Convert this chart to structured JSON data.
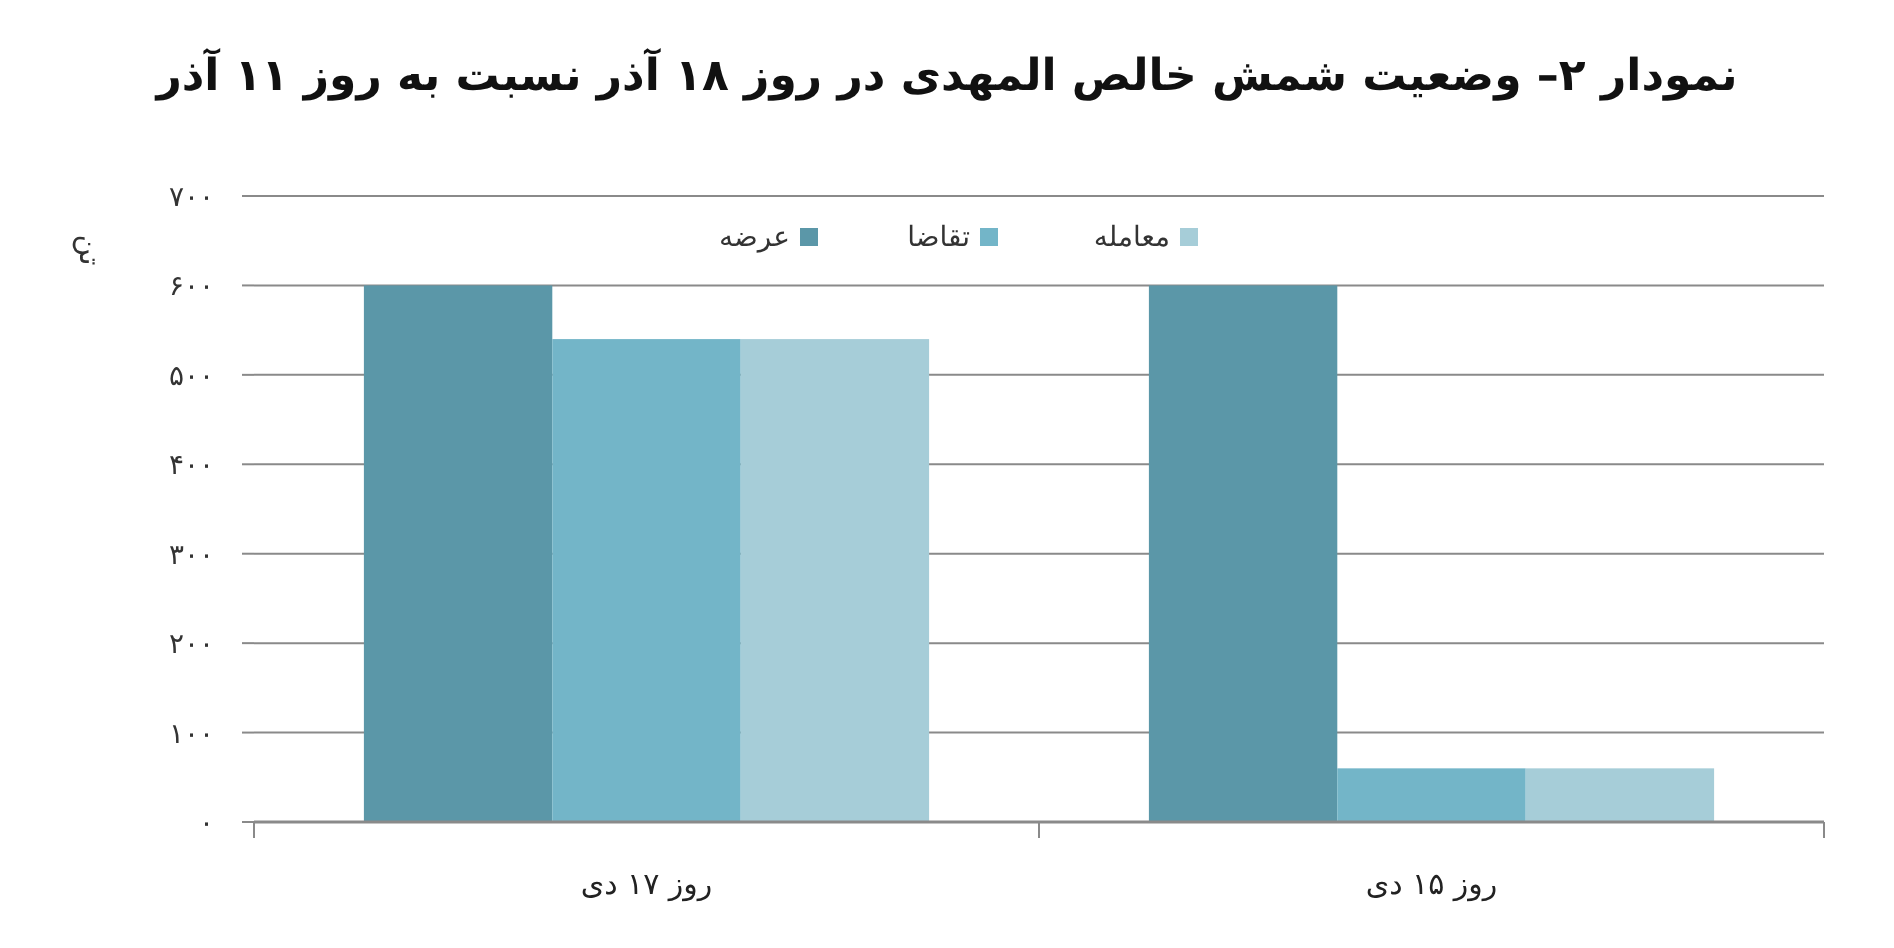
{
  "chart_data": {
    "type": "bar",
    "title": "نمودار ۲– وضعیت شمش خالص المهدی در روز ۱۸ آذر نسبت به روز ۱۱ آذر",
    "ylabel": "تن",
    "categories": [
      "روز ۱۷ دی",
      "روز ۱۵ دی"
    ],
    "series": [
      {
        "name": "عرضه",
        "color": "#5b97a8",
        "values": [
          600,
          600
        ]
      },
      {
        "name": "تقاضا",
        "color": "#73b5c8",
        "values": [
          540,
          60
        ]
      },
      {
        "name": "معامله",
        "color": "#a6cdd8",
        "values": [
          540,
          60
        ]
      }
    ],
    "ylim": [
      0,
      700
    ],
    "yticks": [
      {
        "value": 0,
        "label": "۰"
      },
      {
        "value": 100,
        "label": "۱۰۰"
      },
      {
        "value": 200,
        "label": "۲۰۰"
      },
      {
        "value": 300,
        "label": "۳۰۰"
      },
      {
        "value": 400,
        "label": "۴۰۰"
      },
      {
        "value": 500,
        "label": "۵۰۰"
      },
      {
        "value": 600,
        "label": "۶۰۰"
      },
      {
        "value": 700,
        "label": "۷۰۰"
      }
    ],
    "grid": "y",
    "legend": "top"
  }
}
